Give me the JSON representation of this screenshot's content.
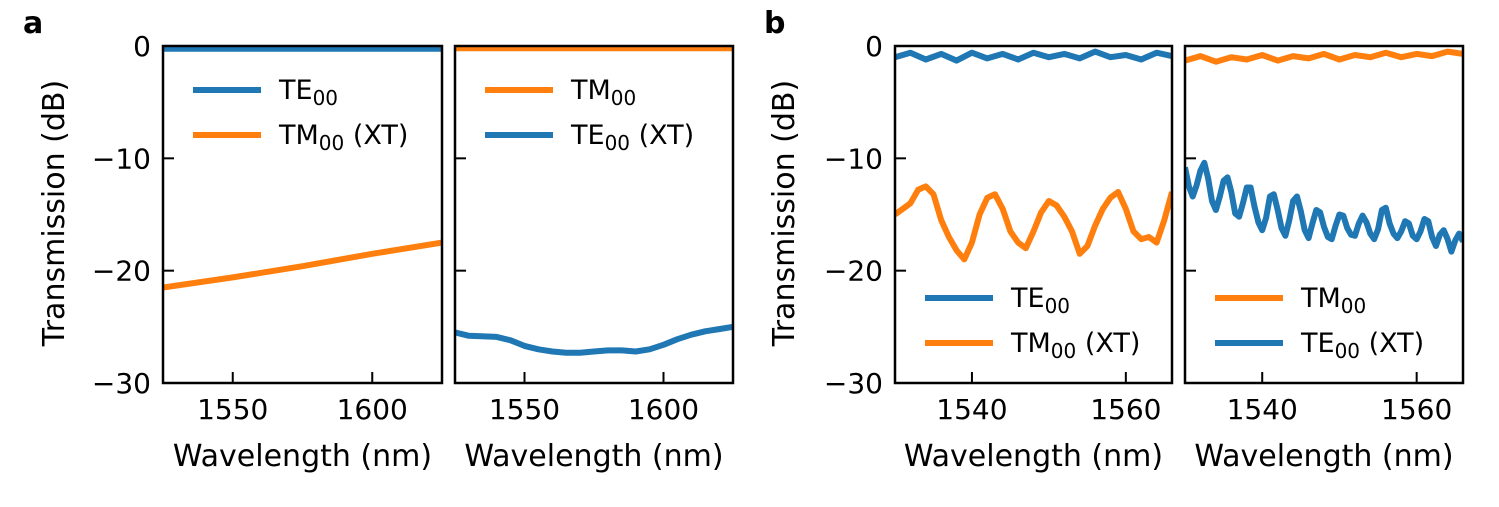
{
  "colors": {
    "blue": "#1f77b4",
    "orange": "#ff7f0e"
  },
  "groups": [
    {
      "letter": "a",
      "ylabel": "Transmission (dB)"
    },
    {
      "letter": "b",
      "ylabel": "Transmission (dB)"
    }
  ],
  "chart_data": [
    {
      "type": "line",
      "panel": "a-left",
      "xlabel": "Wavelength (nm)",
      "ylabel": "Transmission (dB)",
      "xlim": [
        1525,
        1625
      ],
      "ylim": [
        -30,
        0
      ],
      "xticks": [
        1550,
        1600
      ],
      "xtick_labels": [
        "1550",
        "1600"
      ],
      "yticks": [
        0,
        -10,
        -20,
        -30
      ],
      "ytick_labels": [
        "0",
        "−10",
        "−20",
        "−30"
      ],
      "legend": [
        {
          "label": "TE",
          "sub": "00",
          "suffix": "",
          "color": "blue"
        },
        {
          "label": "TM",
          "sub": "00",
          "suffix": " (XT)",
          "color": "orange"
        }
      ],
      "legend_position": "top-left",
      "series": [
        {
          "name": "TE00",
          "color": "blue",
          "x": [
            1525,
            1550,
            1575,
            1600,
            1625
          ],
          "y": [
            -0.25,
            -0.25,
            -0.25,
            -0.25,
            -0.25
          ]
        },
        {
          "name": "TM00 (XT)",
          "color": "orange",
          "x": [
            1525,
            1550,
            1575,
            1600,
            1625
          ],
          "y": [
            -21.5,
            -20.6,
            -19.6,
            -18.5,
            -17.5
          ]
        }
      ]
    },
    {
      "type": "line",
      "panel": "a-right",
      "xlabel": "Wavelength (nm)",
      "ylabel": "",
      "xlim": [
        1525,
        1625
      ],
      "ylim": [
        -30,
        0
      ],
      "xticks": [
        1550,
        1600
      ],
      "xtick_labels": [
        "1550",
        "1600"
      ],
      "yticks": [
        0,
        -10,
        -20,
        -30
      ],
      "ytick_labels": [],
      "legend": [
        {
          "label": "TM",
          "sub": "00",
          "suffix": "",
          "color": "orange"
        },
        {
          "label": "TE",
          "sub": "00",
          "suffix": " (XT)",
          "color": "blue"
        }
      ],
      "legend_position": "top-left",
      "series": [
        {
          "name": "TM00",
          "color": "orange",
          "x": [
            1525,
            1550,
            1575,
            1600,
            1625
          ],
          "y": [
            -0.2,
            -0.2,
            -0.2,
            -0.2,
            -0.2
          ]
        },
        {
          "name": "TE00 (XT)",
          "color": "blue",
          "x": [
            1525,
            1530,
            1540,
            1545,
            1550,
            1555,
            1560,
            1565,
            1570,
            1575,
            1580,
            1585,
            1590,
            1595,
            1600,
            1605,
            1610,
            1615,
            1620,
            1625
          ],
          "y": [
            -25.5,
            -25.8,
            -25.9,
            -26.2,
            -26.7,
            -27.0,
            -27.2,
            -27.3,
            -27.3,
            -27.2,
            -27.1,
            -27.1,
            -27.2,
            -27.0,
            -26.6,
            -26.1,
            -25.7,
            -25.4,
            -25.2,
            -25.0
          ]
        }
      ]
    },
    {
      "type": "line",
      "panel": "b-left",
      "xlabel": "Wavelength (nm)",
      "ylabel": "Transmission (dB)",
      "xlim": [
        1530,
        1566
      ],
      "ylim": [
        -30,
        0
      ],
      "xticks": [
        1540,
        1560
      ],
      "xtick_labels": [
        "1540",
        "1560"
      ],
      "yticks": [
        0,
        -10,
        -20,
        -30
      ],
      "ytick_labels": [
        "0",
        "−10",
        "−20",
        "−30"
      ],
      "legend": [
        {
          "label": "TE",
          "sub": "00",
          "suffix": "",
          "color": "blue"
        },
        {
          "label": "TM",
          "sub": "00",
          "suffix": " (XT)",
          "color": "orange"
        }
      ],
      "legend_position": "lower-left",
      "series": [
        {
          "name": "TE00",
          "color": "blue",
          "x": [
            1530,
            1532,
            1534,
            1536,
            1538,
            1540,
            1542,
            1544,
            1546,
            1548,
            1550,
            1552,
            1554,
            1556,
            1558,
            1560,
            1562,
            1564,
            1566
          ],
          "y": [
            -1.0,
            -0.6,
            -1.2,
            -0.7,
            -1.3,
            -0.6,
            -1.1,
            -0.7,
            -1.2,
            -0.6,
            -1.0,
            -0.7,
            -1.1,
            -0.5,
            -1.0,
            -0.8,
            -1.2,
            -0.6,
            -0.9
          ]
        },
        {
          "name": "TM00 (XT)",
          "color": "orange",
          "x": [
            1530,
            1531,
            1532,
            1533,
            1534,
            1535,
            1536,
            1537,
            1538,
            1539,
            1540,
            1541,
            1542,
            1543,
            1544,
            1545,
            1546,
            1547,
            1548,
            1549,
            1550,
            1551,
            1552,
            1553,
            1554,
            1555,
            1556,
            1557,
            1558,
            1559,
            1560,
            1561,
            1562,
            1563,
            1564,
            1565,
            1566
          ],
          "y": [
            -15.0,
            -14.5,
            -14.0,
            -12.8,
            -12.5,
            -13.2,
            -15.5,
            -17.0,
            -18.2,
            -19.0,
            -17.5,
            -15.0,
            -13.5,
            -13.2,
            -14.5,
            -16.5,
            -17.5,
            -18.0,
            -16.5,
            -14.8,
            -13.8,
            -14.2,
            -15.2,
            -16.5,
            -18.5,
            -17.8,
            -16.0,
            -14.5,
            -13.5,
            -13.0,
            -14.5,
            -16.5,
            -17.2,
            -17.0,
            -17.5,
            -15.5,
            -13.0
          ]
        }
      ]
    },
    {
      "type": "line",
      "panel": "b-right",
      "xlabel": "Wavelength (nm)",
      "ylabel": "",
      "xlim": [
        1530,
        1566
      ],
      "ylim": [
        -30,
        0
      ],
      "xticks": [
        1540,
        1560
      ],
      "xtick_labels": [
        "1540",
        "1560"
      ],
      "yticks": [
        0,
        -10,
        -20,
        -30
      ],
      "ytick_labels": [],
      "legend": [
        {
          "label": "TM",
          "sub": "00",
          "suffix": "",
          "color": "orange"
        },
        {
          "label": "TE",
          "sub": "00",
          "suffix": " (XT)",
          "color": "blue"
        }
      ],
      "legend_position": "lower-left",
      "series": [
        {
          "name": "TM00",
          "color": "orange",
          "x": [
            1530,
            1532,
            1534,
            1536,
            1538,
            1540,
            1542,
            1544,
            1546,
            1548,
            1550,
            1552,
            1554,
            1556,
            1558,
            1560,
            1562,
            1564,
            1566
          ],
          "y": [
            -1.3,
            -0.9,
            -1.4,
            -1.0,
            -1.2,
            -0.8,
            -1.3,
            -0.9,
            -1.1,
            -0.7,
            -1.2,
            -0.8,
            -1.0,
            -0.6,
            -1.0,
            -0.7,
            -0.9,
            -0.5,
            -0.7
          ]
        },
        {
          "name": "TE00 (XT)",
          "color": "blue",
          "x": [
            1530,
            1530.5,
            1531,
            1531.5,
            1532,
            1532.5,
            1533,
            1533.5,
            1534,
            1534.5,
            1535,
            1535.5,
            1536,
            1536.5,
            1537,
            1537.5,
            1538,
            1538.5,
            1539,
            1539.5,
            1540,
            1540.5,
            1541,
            1541.5,
            1542,
            1542.5,
            1543,
            1543.5,
            1544,
            1544.5,
            1545,
            1545.5,
            1546,
            1546.5,
            1547,
            1547.5,
            1548,
            1548.5,
            1549,
            1549.5,
            1550,
            1550.5,
            1551,
            1551.5,
            1552,
            1552.5,
            1553,
            1553.5,
            1554,
            1554.5,
            1555,
            1555.5,
            1556,
            1556.5,
            1557,
            1557.5,
            1558,
            1558.5,
            1559,
            1559.5,
            1560,
            1560.5,
            1561,
            1561.5,
            1562,
            1562.5,
            1563,
            1563.5,
            1564,
            1564.5,
            1565,
            1565.5,
            1566
          ],
          "y": [
            -10.8,
            -12.5,
            -13.4,
            -12.4,
            -11.1,
            -10.4,
            -11.8,
            -13.8,
            -14.6,
            -13.4,
            -12.0,
            -11.7,
            -13.0,
            -14.9,
            -15.2,
            -14.0,
            -12.6,
            -12.6,
            -14.3,
            -15.7,
            -16.4,
            -15.3,
            -13.4,
            -13.2,
            -14.6,
            -16.2,
            -16.9,
            -15.5,
            -13.8,
            -13.4,
            -14.7,
            -16.4,
            -17.1,
            -15.8,
            -14.6,
            -14.8,
            -16.1,
            -17.0,
            -17.2,
            -16.0,
            -15.0,
            -15.1,
            -16.2,
            -16.8,
            -16.9,
            -15.8,
            -15.1,
            -15.7,
            -16.7,
            -17.2,
            -16.3,
            -14.6,
            -14.4,
            -15.8,
            -16.7,
            -17.1,
            -16.5,
            -15.6,
            -15.8,
            -16.9,
            -17.2,
            -16.5,
            -15.4,
            -15.6,
            -17.0,
            -17.8,
            -16.8,
            -16.4,
            -17.2,
            -18.3,
            -17.3,
            -16.7,
            -17.4
          ]
        }
      ]
    }
  ]
}
